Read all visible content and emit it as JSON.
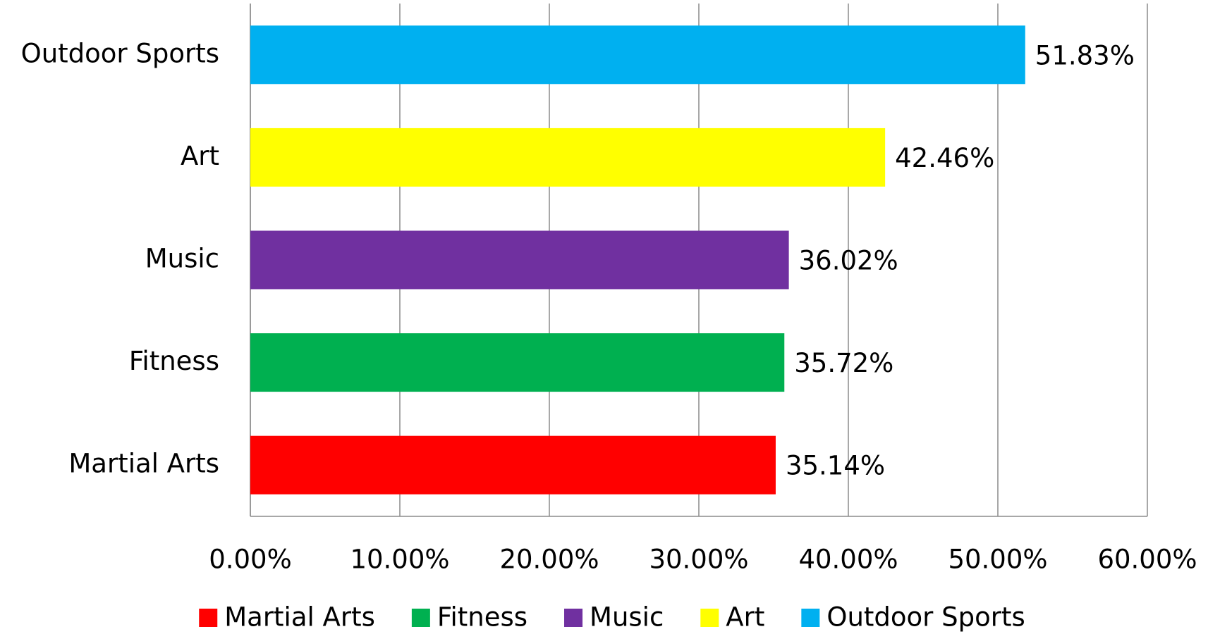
{
  "chart_data": {
    "type": "hbar",
    "categories": [
      "Martial Arts",
      "Fitness",
      "Music",
      "Art",
      "Outdoor Sports"
    ],
    "values": [
      35.14,
      35.72,
      36.02,
      42.46,
      51.83
    ],
    "value_labels": [
      "35.14%",
      "35.72%",
      "36.02%",
      "42.46%",
      "51.83%"
    ],
    "colors": [
      "#ff0000",
      "#00b050",
      "#7030a0",
      "#ffff00",
      "#00b0f0"
    ],
    "xlim": [
      0,
      60
    ],
    "xticks": [
      {
        "value": 0,
        "label": "0.00%"
      },
      {
        "value": 10,
        "label": "10.00%"
      },
      {
        "value": 20,
        "label": "20.00%"
      },
      {
        "value": 30,
        "label": "30.00%"
      },
      {
        "value": 40,
        "label": "40.00%"
      },
      {
        "value": 50,
        "label": "50.00%"
      },
      {
        "value": 60,
        "label": "60.00%"
      }
    ],
    "grid": true,
    "legend": "bottom"
  }
}
